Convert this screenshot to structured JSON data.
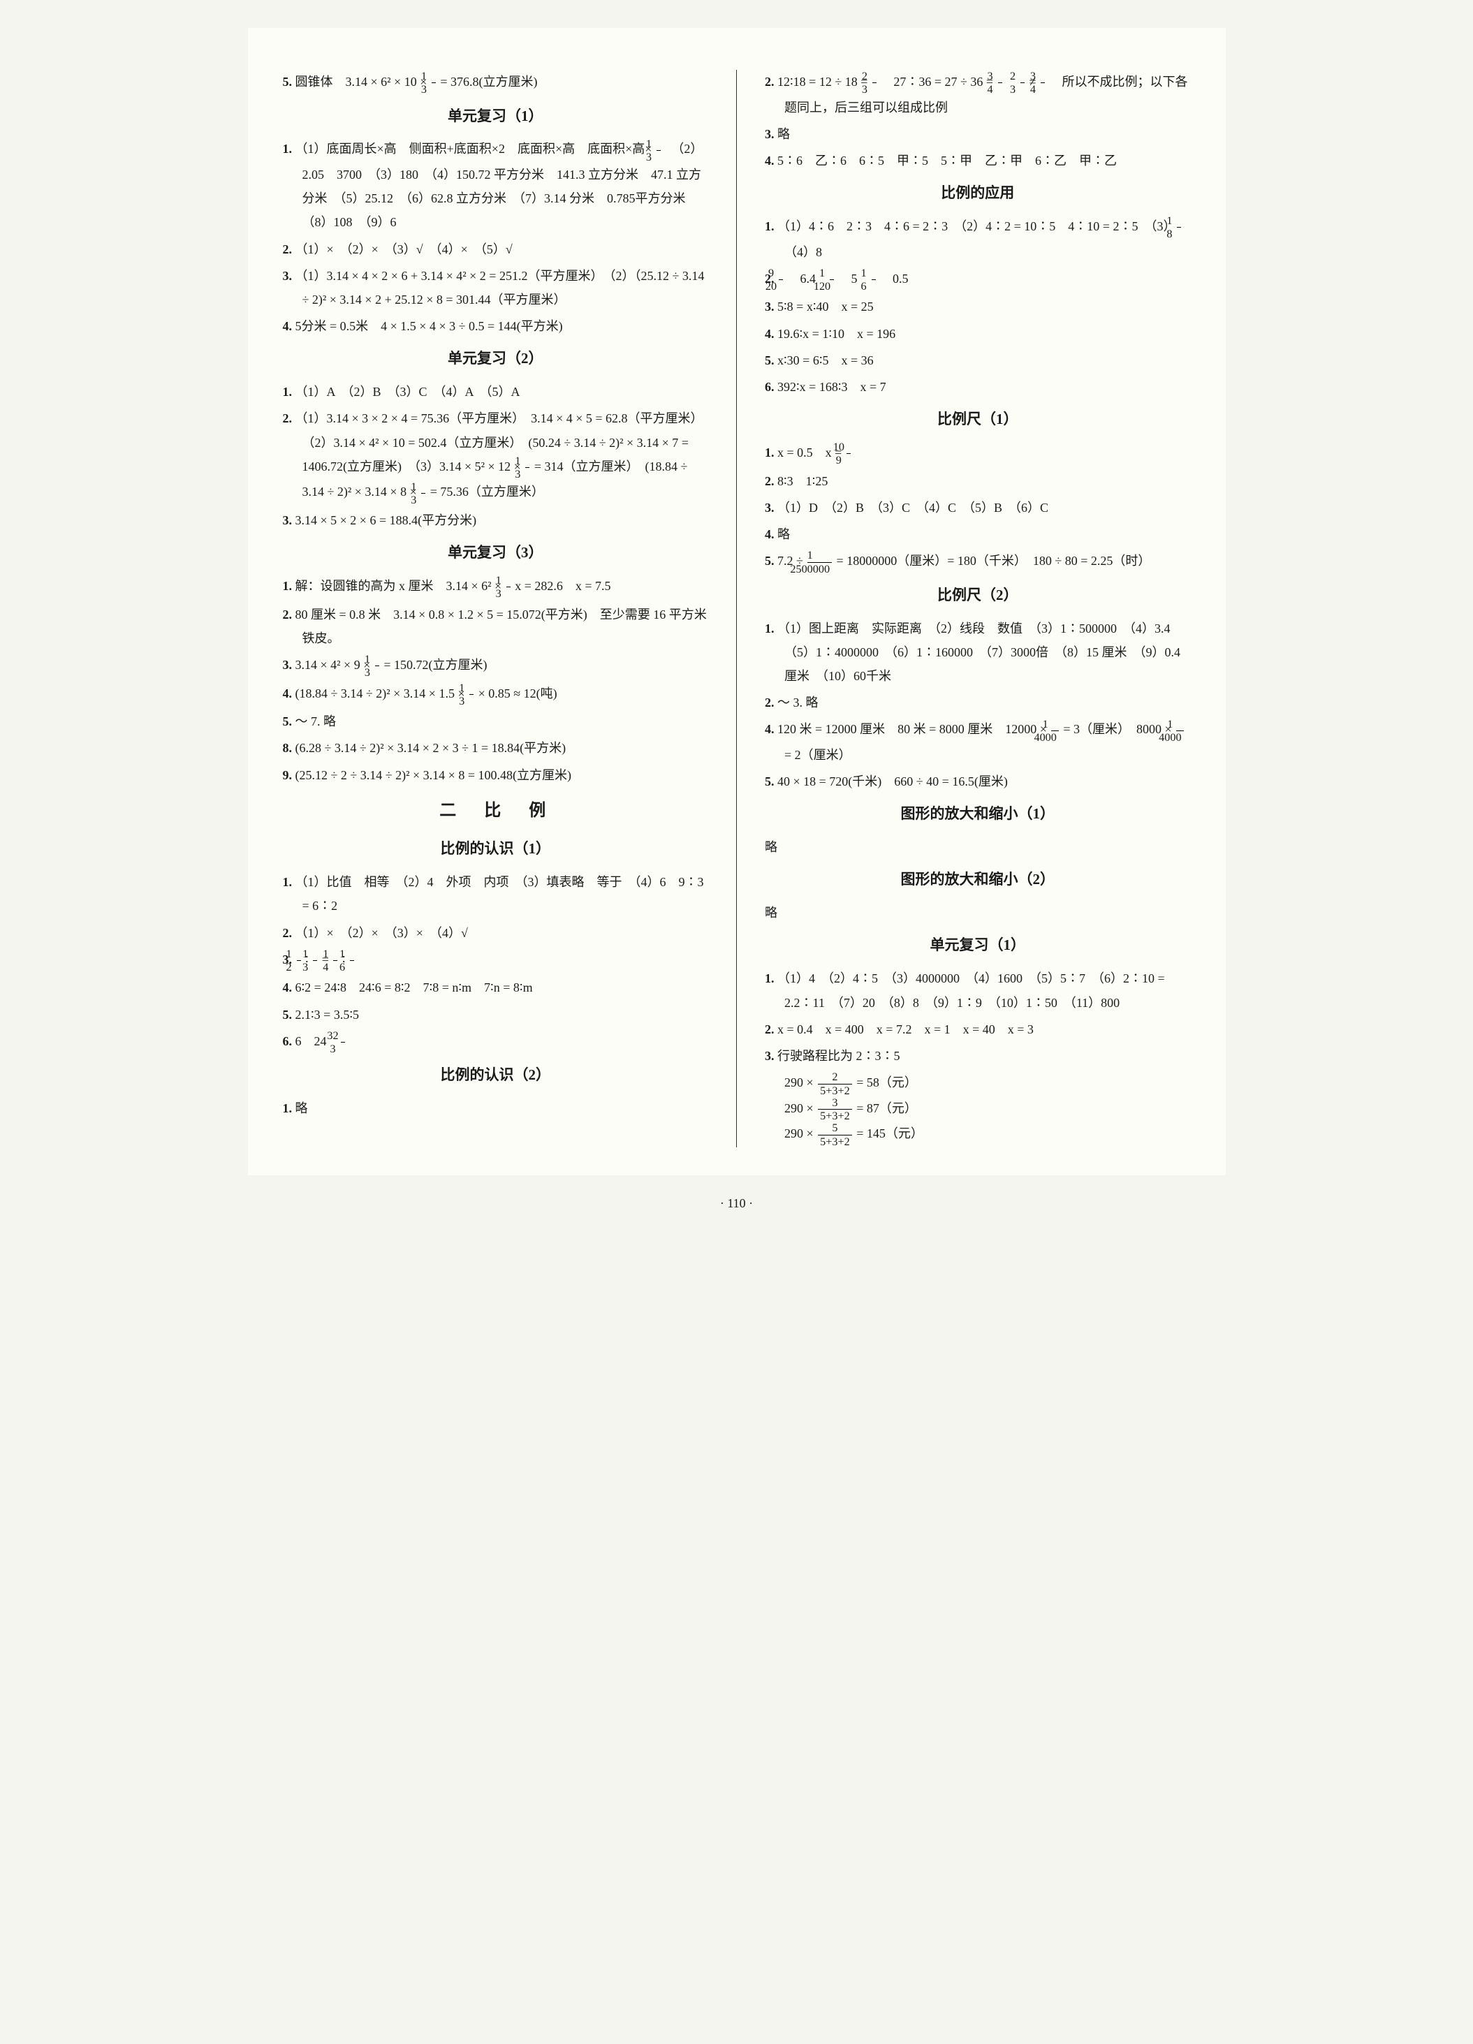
{
  "page_number": "· 110 ·",
  "col1": {
    "items": [
      {
        "n": "5.",
        "t": "圆锥体　3.14 × 6² × 10 × FRAC_1_3 = 376.8(立方厘米)"
      },
      {
        "title": "单元复习（1）"
      },
      {
        "n": "1.",
        "t": "（1）底面周长×高　侧面积+底面积×2　底面积×高　底面积×高× FRAC_1_3 　（2）2.05　3700　（3）180　（4）150.72 平方分米　141.3 立方分米　47.1 立方分米　（5）25.12　（6）62.8 立方分米　（7）3.14 分米　0.785平方分米　（8）108　（9）6"
      },
      {
        "n": "2.",
        "t": "（1）×　（2）×　（3）√　（4）×　（5）√"
      },
      {
        "n": "3.",
        "t": "（1）3.14 × 4 × 2 × 6 + 3.14 × 4² × 2 = 251.2（平方厘米）　（2）（25.12 ÷ 3.14 ÷ 2)² × 3.14 × 2 + 25.12 × 8 = 301.44（平方厘米）"
      },
      {
        "n": "4.",
        "t": "5分米 = 0.5米　4 × 1.5 × 4 × 3 ÷ 0.5 = 144(平方米)"
      },
      {
        "title": "单元复习（2）"
      },
      {
        "n": "1.",
        "t": "（1）A　（2）B　（3）C　（4）A　（5）A"
      },
      {
        "n": "2.",
        "t": "（1）3.14 × 3 × 2 × 4 = 75.36（平方厘米）　3.14 × 4 × 5 = 62.8（平方厘米）　（2）3.14 × 4² × 10 = 502.4（立方厘米）　(50.24 ÷ 3.14 ÷ 2)² × 3.14 × 7 = 1406.72(立方厘米)　（3）3.14 × 5² × 12 × FRAC_1_3 = 314（立方厘米）　(18.84 ÷ 3.14 ÷ 2)² × 3.14 × 8 × FRAC_1_3 = 75.36（立方厘米）"
      },
      {
        "n": "3.",
        "t": "3.14 × 5 × 2 × 6 = 188.4(平方分米)"
      },
      {
        "title": "单元复习（3）"
      },
      {
        "n": "1.",
        "t": "解：设圆锥的高为 x 厘米　3.14 × 6² × FRAC_1_3 x = 282.6　x = 7.5"
      },
      {
        "n": "2.",
        "t": "80 厘米 = 0.8 米　3.14 × 0.8 × 1.2 × 5 = 15.072(平方米)　至少需要 16 平方米铁皮。"
      },
      {
        "n": "3.",
        "t": "3.14 × 4² × 9 × FRAC_1_3 = 150.72(立方厘米)"
      },
      {
        "n": "4.",
        "t": "(18.84 ÷ 3.14 ÷ 2)² × 3.14 × 1.5 × FRAC_1_3 × 0.85 ≈ 12(吨)"
      },
      {
        "n": "5.",
        "t": "～ 7. 略"
      },
      {
        "n": "8.",
        "t": "(6.28 ÷ 3.14 ÷ 2)² × 3.14 × 2 × 3 ÷ 1 = 18.84(平方米)"
      },
      {
        "n": "9.",
        "t": "(25.12 ÷ 2 ÷ 3.14 ÷ 2)² × 3.14 × 8 = 100.48(立方厘米)"
      },
      {
        "chapter": "二　比　例"
      },
      {
        "title": "比例的认识（1）"
      },
      {
        "n": "1.",
        "t": "（1）比值　相等　（2）4　外项　内项　（3）填表略　等于　（4）6　9∶3 = 6∶2"
      },
      {
        "n": "2.",
        "t": "（1）×　（2）×　（3）×　（4）√"
      },
      {
        "n": "3.",
        "t": "FRAC_1_2 ∶ FRAC_1_3 = FRAC_1_4 ∶ FRAC_1_6"
      },
      {
        "n": "4.",
        "t": "6∶2 = 24∶8　24∶6 = 8∶2　7∶8 = n∶m　7∶n = 8∶m"
      },
      {
        "n": "5.",
        "t": "2.1∶3 = 3.5∶5"
      },
      {
        "n": "6.",
        "t": "6　24　FRAC_32_3"
      },
      {
        "title": "比例的认识（2）"
      },
      {
        "n": "1.",
        "t": "略"
      }
    ]
  },
  "col2": {
    "items": [
      {
        "n": "2.",
        "t": "12∶18 = 12 ÷ 18 = FRAC_2_3 　27∶36 = 27 ÷ 36 = FRAC_3_4 　FRAC_2_3 ≠ FRAC_3_4 　所以不成比例；以下各题同上，后三组可以组成比例"
      },
      {
        "n": "3.",
        "t": "略"
      },
      {
        "n": "4.",
        "t": "5∶6　乙∶6　6∶5　甲∶5　5∶甲　乙∶甲　6∶乙　甲∶乙"
      },
      {
        "title": "比例的应用"
      },
      {
        "n": "1.",
        "t": "（1）4∶6　2∶3　4∶6 = 2∶3　（2）4∶2 = 10∶5　4∶10 = 2∶5　（3）FRAC_1_8 　（4）8"
      },
      {
        "n": "2.",
        "t": "FRAC_9_20 　6.4　FRAC_1_120 　5　FRAC_1_6 　0.5"
      },
      {
        "n": "3.",
        "t": "5∶8 = x∶40　x = 25"
      },
      {
        "n": "4.",
        "t": "19.6∶x = 1∶10　x = 196"
      },
      {
        "n": "5.",
        "t": "x∶30 = 6∶5　x = 36"
      },
      {
        "n": "6.",
        "t": "392∶x = 168∶3　x = 7"
      },
      {
        "title": "比例尺（1）"
      },
      {
        "n": "1.",
        "t": "x = 0.5　x = FRAC_10_9"
      },
      {
        "n": "2.",
        "t": "8∶3　1∶25"
      },
      {
        "n": "3.",
        "t": "（1）D　（2）B　（3）C　（4）C　（5）B　（6）C"
      },
      {
        "n": "4.",
        "t": "略"
      },
      {
        "n": "5.",
        "t": "7.2 ÷ FRAC_1_2500000 = 18000000（厘米）= 180（千米）　180 ÷ 80 = 2.25（时）"
      },
      {
        "title": "比例尺（2）"
      },
      {
        "n": "1.",
        "t": "（1）图上距离　实际距离　（2）线段　数值　（3）1∶500000　（4）3.4　（5）1∶4000000　（6）1∶160000　（7）3000倍　（8）15 厘米　（9）0.4 厘米　（10）60千米"
      },
      {
        "n": "2.",
        "t": "～ 3. 略"
      },
      {
        "n": "4.",
        "t": "120 米 = 12000 厘米　80 米 = 8000 厘米　12000 × FRAC_1_4000 = 3（厘米）　8000 × FRAC_1_4000 = 2（厘米）"
      },
      {
        "n": "5.",
        "t": "40 × 18 = 720(千米)　660 ÷ 40 = 16.5(厘米)"
      },
      {
        "title": "图形的放大和缩小（1）"
      },
      {
        "raw": "略"
      },
      {
        "title": "图形的放大和缩小（2）"
      },
      {
        "raw": "略"
      },
      {
        "title": "单元复习（1）"
      },
      {
        "n": "1.",
        "t": "（1）4　（2）4∶5　（3）4000000　（4）1600　（5）5∶7　（6）2∶10 = 2.2∶11　（7）20　（8）8　（9）1∶9　（10）1∶50　（11）800"
      },
      {
        "n": "2.",
        "t": "x = 0.4　x = 400　x = 7.2　x = 1　x = 40　x = 3"
      },
      {
        "n": "3.",
        "t": "行驶路程比为 2∶3∶5"
      },
      {
        "indent": "290 × FRAC_2_5+3+2 = 58（元）"
      },
      {
        "indent": "290 × FRAC_3_5+3+2 = 87（元）"
      },
      {
        "indent": "290 × FRAC_5_5+3+2 = 145（元）"
      }
    ]
  }
}
